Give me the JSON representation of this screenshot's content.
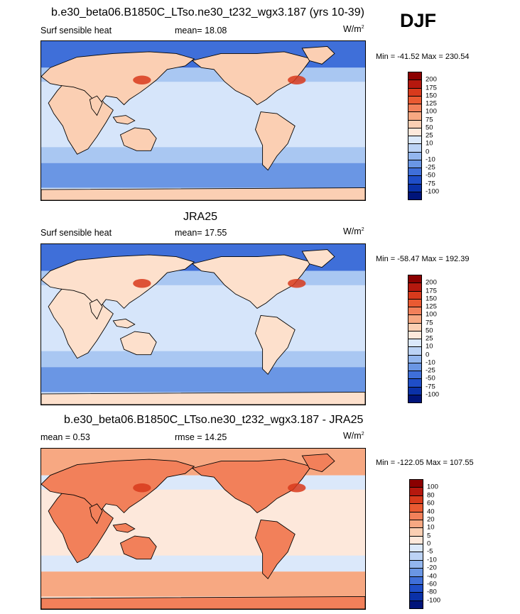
{
  "season": "DJF",
  "panels": [
    {
      "title": "b.e30_beta06.B1850C_LTso.ne30_t232_wgx3.187 (yrs 10-39)",
      "left_label": "Surf sensible heat",
      "stat_label": "mean=",
      "stat_value": "18.08",
      "units_base": "W/m",
      "units_exp": "2",
      "minmax": "Min = -41.52 Max = 230.54",
      "colorbar_labels": [
        "200",
        "175",
        "150",
        "125",
        "100",
        "75",
        "50",
        "25",
        "10",
        "0",
        "-10",
        "-25",
        "-50",
        "-75",
        "-100"
      ],
      "colorbar_colors": [
        "#8b0000",
        "#b5180e",
        "#d83a1c",
        "#ea5a32",
        "#f2805a",
        "#f7a882",
        "#fbcfb3",
        "#fde8db",
        "#dbe8fa",
        "#bcd3f5",
        "#93b6ee",
        "#6a96e4",
        "#3f6fd9",
        "#1f4ec8",
        "#0a31a8",
        "#00147a"
      ]
    },
    {
      "title": "JRA25",
      "left_label": "Surf sensible heat",
      "stat_label": "mean=",
      "stat_value": "17.55",
      "units_base": "W/m",
      "units_exp": "2",
      "minmax": "Min = -58.47 Max = 192.39",
      "colorbar_labels": [
        "200",
        "175",
        "150",
        "125",
        "100",
        "75",
        "50",
        "25",
        "10",
        "0",
        "-10",
        "-25",
        "-50",
        "-75",
        "-100"
      ],
      "colorbar_colors": [
        "#8b0000",
        "#b5180e",
        "#d83a1c",
        "#ea5a32",
        "#f2805a",
        "#f7a882",
        "#fbcfb3",
        "#fde8db",
        "#dbe8fa",
        "#bcd3f5",
        "#93b6ee",
        "#6a96e4",
        "#3f6fd9",
        "#1f4ec8",
        "#0a31a8",
        "#00147a"
      ]
    },
    {
      "title": "b.e30_beta06.B1850C_LTso.ne30_t232_wgx3.187 - JRA25",
      "left_label": "mean =  0.53",
      "stat_label": "rmse =",
      "stat_value": "14.25",
      "units_base": "W/m",
      "units_exp": "2",
      "minmax": "Min = -122.05 Max = 107.55",
      "colorbar_labels": [
        "100",
        "80",
        "60",
        "40",
        "20",
        "10",
        "5",
        "0",
        "-5",
        "-10",
        "-20",
        "-40",
        "-60",
        "-80",
        "-100"
      ],
      "colorbar_colors": [
        "#8b0000",
        "#b5180e",
        "#d83a1c",
        "#ea5a32",
        "#f2805a",
        "#f7a882",
        "#fbcfb3",
        "#fde8db",
        "#dbe8fa",
        "#bcd3f5",
        "#93b6ee",
        "#6a96e4",
        "#3f6fd9",
        "#1f4ec8",
        "#0a31a8",
        "#00147a"
      ]
    }
  ],
  "chart_data": [
    {
      "type": "heatmap",
      "title": "b.e30_beta06.B1850C_LTso.ne30_t232_wgx3.187 (yrs 10-39)",
      "variable": "Surf sensible heat",
      "units": "W/m2",
      "season": "DJF",
      "mean": 18.08,
      "min": -41.52,
      "max": 230.54,
      "contour_levels": [
        -100,
        -75,
        -50,
        -25,
        -10,
        0,
        10,
        25,
        50,
        75,
        100,
        125,
        150,
        175,
        200
      ]
    },
    {
      "type": "heatmap",
      "title": "JRA25",
      "variable": "Surf sensible heat",
      "units": "W/m2",
      "season": "DJF",
      "mean": 17.55,
      "min": -58.47,
      "max": 192.39,
      "contour_levels": [
        -100,
        -75,
        -50,
        -25,
        -10,
        0,
        10,
        25,
        50,
        75,
        100,
        125,
        150,
        175,
        200
      ]
    },
    {
      "type": "heatmap",
      "title": "b.e30_beta06.B1850C_LTso.ne30_t232_wgx3.187 - JRA25",
      "units": "W/m2",
      "season": "DJF",
      "mean": 0.53,
      "rmse": 14.25,
      "min": -122.05,
      "max": 107.55,
      "contour_levels": [
        -100,
        -80,
        -60,
        -40,
        -20,
        -10,
        -5,
        0,
        5,
        10,
        20,
        40,
        60,
        80,
        100
      ]
    }
  ]
}
